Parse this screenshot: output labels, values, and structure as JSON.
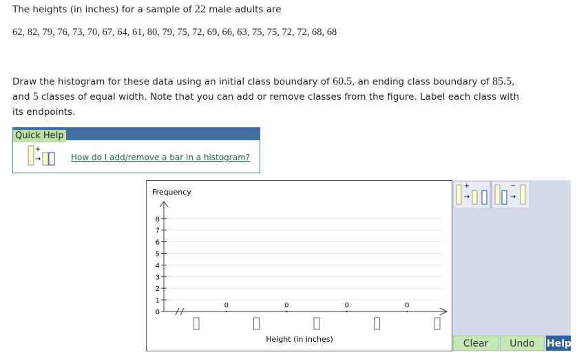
{
  "question": {
    "intro": [
      "The heights (in inches) for a sample of ",
      22,
      " male adults are"
    ],
    "data": "62, 82, 79, 76, 73, 70, 67, 64, 61, 80, 79, 75, 72, 69, 66, 63, 75, 75, 72, 72, 68, 68",
    "instructions": [
      "Draw the histogram for these data using an initial class boundary of ",
      60.5,
      ", an ending class boundary of ",
      85.5,
      ", and ",
      5,
      " classes of equal width. Note that you can add or remove classes from the figure. Label each class with its endpoints."
    ]
  },
  "quick_help": {
    "title": "Quick Help",
    "link": "How do I add/remove a bar in a histogram?"
  },
  "graph": {
    "y_label": "Frequency",
    "x_label": "Height (in inches)",
    "yticks": [
      0,
      1,
      2,
      3,
      4,
      5,
      6,
      7,
      8
    ],
    "bar_labels": [
      0,
      0,
      0,
      0
    ]
  },
  "buttons": [
    "Clear",
    "Undo",
    "Help"
  ]
}
